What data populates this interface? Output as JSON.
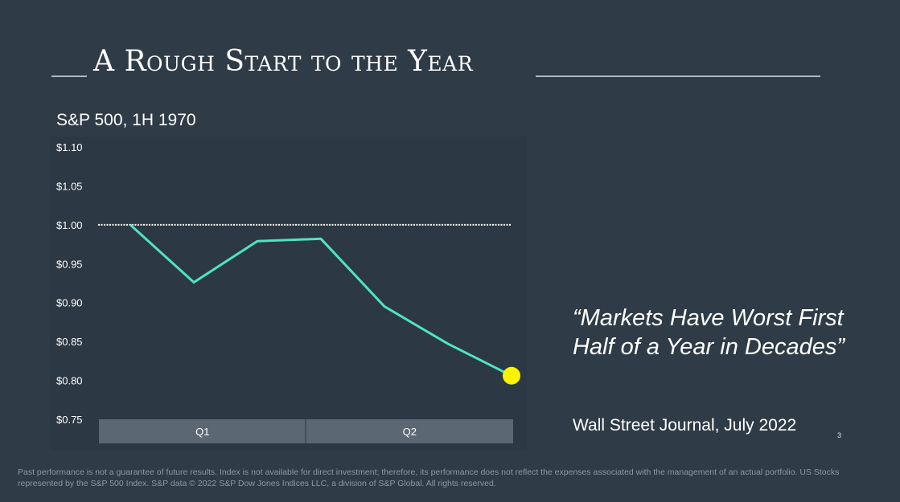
{
  "slide": {
    "title": "A Rough Start to the Year",
    "page_number": "3",
    "quote": "“Markets Have Worst First Half of a Year in Decades”",
    "quote_source": "Wall Street Journal, July 2022",
    "disclaimer": "Past performance is not a guarantee of future results. Index is not available for direct investment; therefore, its performance does not reflect the expenses associated with the management of an actual portfolio. US Stocks represented by the S&P 500 Index. S&P data © 2022 S&P Dow Jones Indices LLC, a division of S&P Global. All rights reserved."
  },
  "colors": {
    "background": "#2f3c47",
    "plot_background": "#2c3843",
    "line": "#4fe3c1",
    "end_marker": "#fff200",
    "quarter_band": "#5b6773",
    "reference_line": "#ffffff"
  },
  "chart_data": {
    "type": "line",
    "title": "S&P 500, 1H 1970",
    "xlabel": "",
    "ylabel": "",
    "ylim": [
      0.75,
      1.1
    ],
    "y_ticks": [
      {
        "value": 1.1,
        "label": "$1.10"
      },
      {
        "value": 1.05,
        "label": "$1.05"
      },
      {
        "value": 1.0,
        "label": "$1.00"
      },
      {
        "value": 0.95,
        "label": "$0.95"
      },
      {
        "value": 0.9,
        "label": "$0.90"
      },
      {
        "value": 0.85,
        "label": "$0.85"
      },
      {
        "value": 0.8,
        "label": "$0.80"
      },
      {
        "value": 0.75,
        "label": "$0.75"
      }
    ],
    "x_categories": [
      "Q1",
      "Q2"
    ],
    "x": [
      0,
      1,
      2,
      3,
      4,
      5,
      6
    ],
    "values": [
      1.0,
      0.926,
      0.979,
      0.982,
      0.895,
      0.847,
      0.806
    ],
    "reference_line": {
      "value": 1.0,
      "style": "dotted"
    },
    "end_marker": true,
    "grid": false,
    "legend": "none"
  }
}
